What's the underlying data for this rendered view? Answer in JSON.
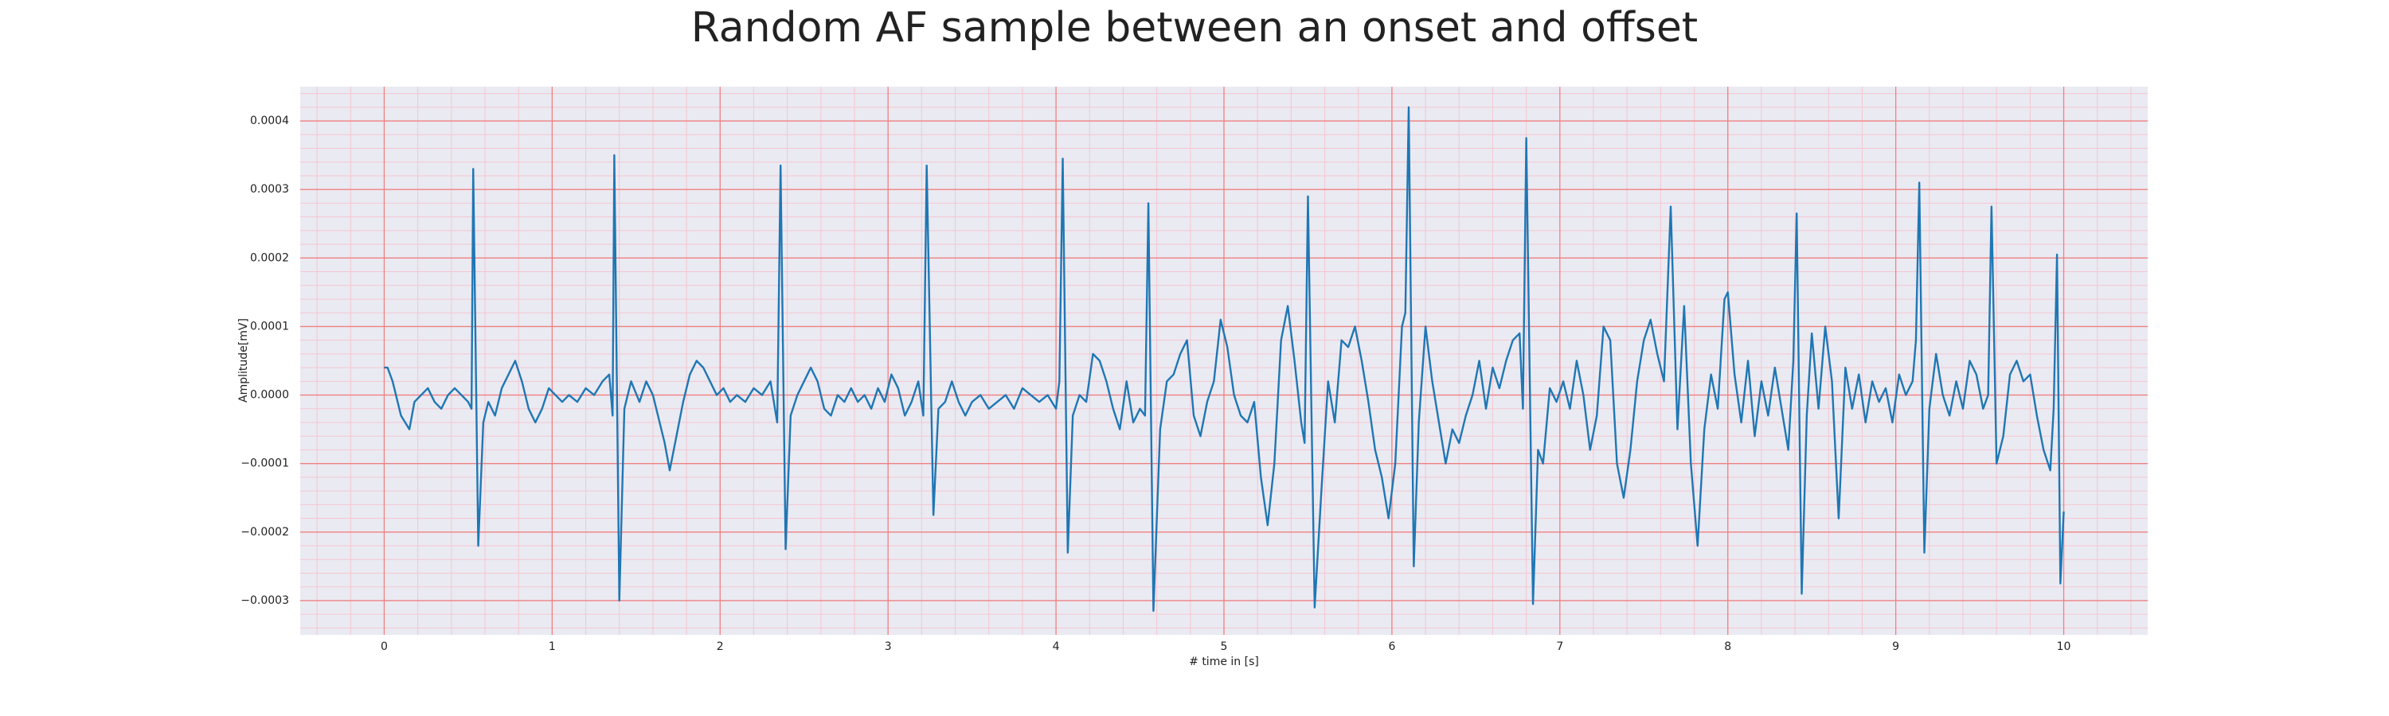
{
  "chart_data": {
    "type": "line",
    "title": "Random AF sample between an onset and offset",
    "x_label": "# time in [s]",
    "y_label": "Amplitude[mV]",
    "color": "#1f77b4",
    "background": "#eaeaf2",
    "grid": true,
    "grid_color": "#f08080",
    "minor_grid_color": "#f5c6d0",
    "xlim": [
      -0.5,
      10.5
    ],
    "ylim": [
      -0.00035,
      0.00045
    ],
    "xticks": [
      0,
      1,
      2,
      3,
      4,
      5,
      6,
      7,
      8,
      9,
      10
    ],
    "yticks": [
      {
        "value": -0.0003,
        "label": "−0.0003"
      },
      {
        "value": -0.0002,
        "label": "−0.0002"
      },
      {
        "value": -0.0001,
        "label": "−0.0001"
      },
      {
        "value": 0,
        "label": "0.0000"
      },
      0.0001,
      0.0002,
      0.0003,
      0.0004
    ],
    "xminorticks": [
      -0.4,
      -0.2,
      0.2,
      0.4,
      0.6,
      0.8,
      1.2,
      1.4,
      1.6,
      1.8,
      2.2,
      2.4,
      2.6,
      2.8,
      3.2,
      3.4,
      3.6,
      3.8,
      4.2,
      4.4,
      4.6,
      4.8,
      5.2,
      5.4,
      5.6,
      5.8,
      6.2,
      6.4,
      6.6,
      6.8,
      7.2,
      7.4,
      7.6,
      7.8,
      8.2,
      8.4,
      8.6,
      8.8,
      9.2,
      9.4,
      9.6,
      9.8,
      10.2,
      10.4
    ],
    "yminorticks": [
      -0.00034,
      -0.00032,
      -0.00028,
      -0.00026,
      -0.00024,
      -0.00022,
      -0.00018,
      -0.00016,
      -0.00014,
      -0.00012,
      -8e-05,
      -6e-05,
      -4e-05,
      -2e-05,
      2e-05,
      4e-05,
      6e-05,
      8e-05,
      0.00012,
      0.00014,
      0.00016,
      0.00018,
      0.00022,
      0.00024,
      0.00026,
      0.00028,
      0.00032,
      0.00034,
      0.00036,
      0.00038,
      0.00042,
      0.00044
    ],
    "x": [
      0,
      0.02,
      0.05,
      0.1,
      0.15,
      0.18,
      0.22,
      0.26,
      0.3,
      0.34,
      0.38,
      0.42,
      0.46,
      0.5,
      0.52,
      0.53,
      0.56,
      0.59,
      0.62,
      0.66,
      0.7,
      0.74,
      0.78,
      0.82,
      0.86,
      0.9,
      0.94,
      0.98,
      1.02,
      1.06,
      1.1,
      1.15,
      1.2,
      1.25,
      1.3,
      1.34,
      1.36,
      1.37,
      1.4,
      1.43,
      1.47,
      1.52,
      1.56,
      1.6,
      1.63,
      1.67,
      1.7,
      1.74,
      1.78,
      1.82,
      1.86,
      1.9,
      1.94,
      1.98,
      2.02,
      2.06,
      2.1,
      2.15,
      2.2,
      2.25,
      2.3,
      2.34,
      2.36,
      2.39,
      2.42,
      2.46,
      2.5,
      2.54,
      2.58,
      2.62,
      2.66,
      2.7,
      2.74,
      2.78,
      2.82,
      2.86,
      2.9,
      2.94,
      2.98,
      3.02,
      3.06,
      3.1,
      3.14,
      3.18,
      3.21,
      3.23,
      3.27,
      3.3,
      3.34,
      3.38,
      3.42,
      3.46,
      3.5,
      3.55,
      3.6,
      3.65,
      3.7,
      3.75,
      3.8,
      3.85,
      3.9,
      3.95,
      4.0,
      4.02,
      4.04,
      4.07,
      4.1,
      4.14,
      4.18,
      4.22,
      4.26,
      4.3,
      4.34,
      4.38,
      4.42,
      4.46,
      4.5,
      4.53,
      4.55,
      4.58,
      4.62,
      4.66,
      4.7,
      4.74,
      4.78,
      4.82,
      4.86,
      4.9,
      4.94,
      4.98,
      5.02,
      5.06,
      5.1,
      5.14,
      5.18,
      5.22,
      5.26,
      5.3,
      5.34,
      5.38,
      5.42,
      5.46,
      5.48,
      5.5,
      5.54,
      5.58,
      5.62,
      5.66,
      5.7,
      5.74,
      5.78,
      5.82,
      5.86,
      5.9,
      5.94,
      5.98,
      6.02,
      6.06,
      6.08,
      6.1,
      6.13,
      6.16,
      6.2,
      6.24,
      6.28,
      6.32,
      6.36,
      6.4,
      6.44,
      6.48,
      6.52,
      6.56,
      6.6,
      6.64,
      6.68,
      6.72,
      6.76,
      6.78,
      6.8,
      6.84,
      6.87,
      6.9,
      6.94,
      6.98,
      7.02,
      7.06,
      7.1,
      7.14,
      7.18,
      7.22,
      7.26,
      7.3,
      7.34,
      7.38,
      7.42,
      7.46,
      7.5,
      7.54,
      7.58,
      7.62,
      7.66,
      7.7,
      7.74,
      7.78,
      7.82,
      7.86,
      7.9,
      7.94,
      7.98,
      8.0,
      8.04,
      8.08,
      8.12,
      8.16,
      8.2,
      8.24,
      8.28,
      8.32,
      8.36,
      8.39,
      8.41,
      8.44,
      8.47,
      8.5,
      8.54,
      8.58,
      8.62,
      8.66,
      8.7,
      8.74,
      8.78,
      8.82,
      8.86,
      8.9,
      8.94,
      8.98,
      9.02,
      9.06,
      9.1,
      9.12,
      9.14,
      9.17,
      9.2,
      9.24,
      9.28,
      9.32,
      9.36,
      9.4,
      9.44,
      9.48,
      9.52,
      9.55,
      9.57,
      9.6,
      9.64,
      9.68,
      9.72,
      9.76,
      9.8,
      9.84,
      9.88,
      9.92,
      9.94,
      9.96,
      9.98,
      10.0
    ],
    "values": [
      4e-05,
      4e-05,
      2e-05,
      -3e-05,
      -5e-05,
      -1e-05,
      0,
      1e-05,
      -1e-05,
      -2e-05,
      0,
      1e-05,
      0,
      -1e-05,
      -2e-05,
      0.00033,
      -0.00022,
      -4e-05,
      -1e-05,
      -3e-05,
      1e-05,
      3e-05,
      5e-05,
      2e-05,
      -2e-05,
      -4e-05,
      -2e-05,
      1e-05,
      0,
      -1e-05,
      0,
      -1e-05,
      1e-05,
      0,
      2e-05,
      3e-05,
      -3e-05,
      0.00035,
      -0.0003,
      -2e-05,
      2e-05,
      -1e-05,
      2e-05,
      0,
      -3e-05,
      -7e-05,
      -0.00011,
      -6e-05,
      -1e-05,
      3e-05,
      5e-05,
      4e-05,
      2e-05,
      0,
      1e-05,
      -1e-05,
      0,
      -1e-05,
      1e-05,
      0,
      2e-05,
      -4e-05,
      0.000335,
      -0.000225,
      -3e-05,
      0,
      2e-05,
      4e-05,
      2e-05,
      -2e-05,
      -3e-05,
      0,
      -1e-05,
      1e-05,
      -1e-05,
      0,
      -2e-05,
      1e-05,
      -1e-05,
      3e-05,
      1e-05,
      -3e-05,
      -1e-05,
      2e-05,
      -3e-05,
      0.000335,
      -0.000175,
      -2e-05,
      -1e-05,
      2e-05,
      -1e-05,
      -3e-05,
      -1e-05,
      0,
      -2e-05,
      -1e-05,
      0,
      -2e-05,
      1e-05,
      0,
      -1e-05,
      0,
      -2e-05,
      2e-05,
      0.000345,
      -0.00023,
      -3e-05,
      0,
      -1e-05,
      6e-05,
      5e-05,
      2e-05,
      -2e-05,
      -5e-05,
      2e-05,
      -4e-05,
      -2e-05,
      -3e-05,
      0.00028,
      -0.000315,
      -5e-05,
      2e-05,
      3e-05,
      6e-05,
      8e-05,
      -3e-05,
      -6e-05,
      -1e-05,
      2e-05,
      0.00011,
      7e-05,
      0,
      -3e-05,
      -4e-05,
      -1e-05,
      -0.00012,
      -0.00019,
      -0.0001,
      8e-05,
      0.00013,
      5e-05,
      -4e-05,
      -7e-05,
      0.00029,
      -0.00031,
      -0.00014,
      2e-05,
      -4e-05,
      8e-05,
      7e-05,
      0.0001,
      5e-05,
      -1e-05,
      -8e-05,
      -0.00012,
      -0.00018,
      -0.0001,
      0.0001,
      0.00012,
      0.00042,
      -0.00025,
      -4e-05,
      0.0001,
      2e-05,
      -4e-05,
      -0.0001,
      -5e-05,
      -7e-05,
      -3e-05,
      0,
      5e-05,
      -2e-05,
      4e-05,
      1e-05,
      5e-05,
      8e-05,
      9e-05,
      -2e-05,
      0.000375,
      -0.000305,
      -8e-05,
      -0.0001,
      1e-05,
      -1e-05,
      2e-05,
      -2e-05,
      5e-05,
      0,
      -8e-05,
      -3e-05,
      0.0001,
      8e-05,
      -0.0001,
      -0.00015,
      -8e-05,
      2e-05,
      8e-05,
      0.00011,
      6e-05,
      2e-05,
      0.000275,
      -5e-05,
      0.00013,
      -0.0001,
      -0.00022,
      -5e-05,
      3e-05,
      -2e-05,
      0.00014,
      0.00015,
      3e-05,
      -4e-05,
      5e-05,
      -6e-05,
      2e-05,
      -3e-05,
      4e-05,
      -2e-05,
      -8e-05,
      5e-05,
      0.000265,
      -0.00029,
      -3e-05,
      9e-05,
      -2e-05,
      0.0001,
      2e-05,
      -0.00018,
      4e-05,
      -2e-05,
      3e-05,
      -4e-05,
      2e-05,
      -1e-05,
      1e-05,
      -4e-05,
      3e-05,
      0,
      2e-05,
      8e-05,
      0.00031,
      -0.00023,
      -2e-05,
      6e-05,
      0,
      -3e-05,
      2e-05,
      -2e-05,
      5e-05,
      3e-05,
      -2e-05,
      0,
      0.000275,
      -0.0001,
      -6e-05,
      3e-05,
      5e-05,
      2e-05,
      3e-05,
      -3e-05,
      -8e-05,
      -0.00011,
      -2e-05,
      0.000205,
      -0.000275,
      -0.00017
    ]
  }
}
